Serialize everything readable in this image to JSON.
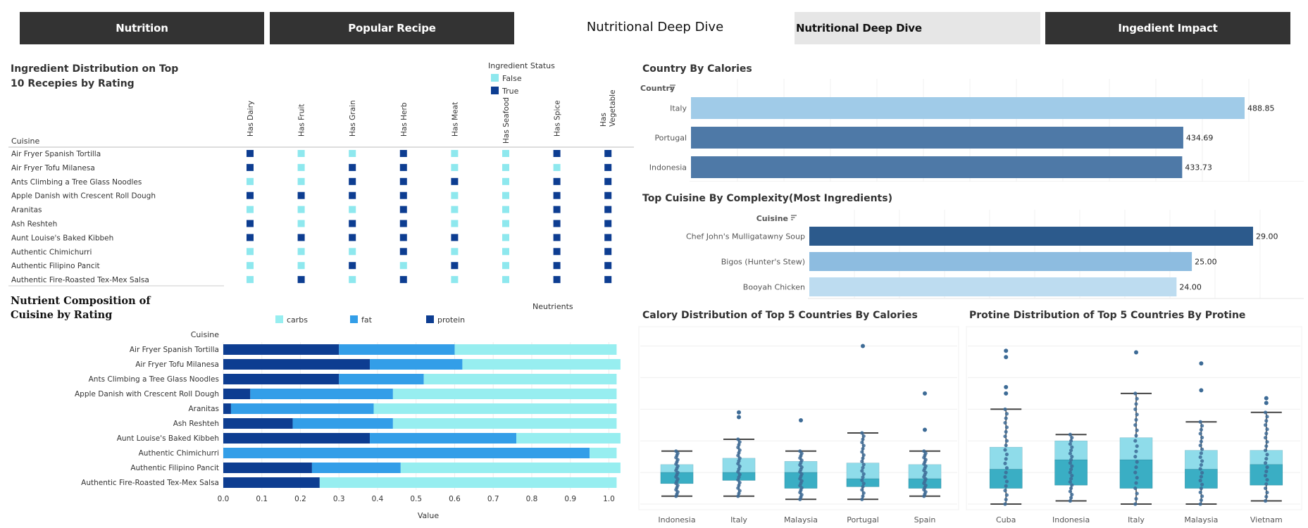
{
  "nav": {
    "tabs": [
      {
        "label": "Nutrition",
        "style": "dark"
      },
      {
        "label": "Popular Recipe",
        "style": "dark"
      },
      {
        "label": "Nutritional Deep Dive",
        "style": "title"
      },
      {
        "label": "Nutritional Deep Dive",
        "style": "light"
      },
      {
        "label": "Ingedient Impact",
        "style": "dark"
      }
    ]
  },
  "colors": {
    "true": "#0d3d91",
    "false": "#8ee8ee",
    "carbs": "#97eef0",
    "fat": "#339ee8",
    "protein": "#0d3d91",
    "bar_dark": "#4e79a7",
    "bar_light": "#a0cbe8",
    "bar_darkest": "#2c5a8c",
    "bar_mid": "#8dbce0",
    "bar_lightest": "#bddcf0",
    "box_upper": "#8fdcea",
    "box_lower": "#3aaec4",
    "dots": "#3d6b96"
  },
  "chart_data": [
    {
      "id": "ingredient-grid",
      "type": "table",
      "title": "Ingredient Distribution on Top 10 Recepies by Rating",
      "row_header": "Cuisine",
      "legend_title": "Ingredient Status",
      "legend": [
        "False",
        "True"
      ],
      "columns": [
        "Has Dairy",
        "Has Fruit",
        "Has Grain",
        "Has Herb",
        "Has Meat",
        "Has Seafood",
        "Has Spice",
        "Has Vegetable"
      ],
      "rows": [
        "Air Fryer Spanish Tortilla",
        "Air Fryer Tofu Milanesa",
        "Ants Climbing a Tree Glass Noodles",
        "Apple Danish with Crescent Roll Dough",
        "Aranitas",
        "Ash Reshteh",
        "Aunt Louise's Baked Kibbeh",
        "Authentic Chimichurri",
        "Authentic Filipino Pancit",
        "Authentic Fire-Roasted Tex-Mex Salsa"
      ],
      "values": [
        [
          true,
          false,
          false,
          true,
          false,
          false,
          true,
          true
        ],
        [
          true,
          false,
          true,
          true,
          false,
          false,
          false,
          true
        ],
        [
          false,
          false,
          true,
          true,
          true,
          false,
          true,
          true
        ],
        [
          true,
          true,
          true,
          true,
          false,
          false,
          true,
          true
        ],
        [
          false,
          false,
          false,
          true,
          false,
          false,
          true,
          true
        ],
        [
          true,
          false,
          true,
          true,
          false,
          false,
          true,
          true
        ],
        [
          true,
          true,
          true,
          true,
          true,
          false,
          true,
          true
        ],
        [
          false,
          false,
          false,
          true,
          false,
          false,
          true,
          true
        ],
        [
          false,
          false,
          true,
          false,
          true,
          false,
          true,
          true
        ],
        [
          false,
          true,
          false,
          true,
          false,
          false,
          true,
          true
        ]
      ]
    },
    {
      "id": "nutrient-composition",
      "type": "bar",
      "title": "Nutrient Composition of Cuisine by Rating",
      "legend_title": "Neutrients",
      "ylabel": "Cuisine",
      "xlabel": "Value",
      "xlim": [
        0,
        1
      ],
      "xticks": [
        "0.0",
        "0.1",
        "0.2",
        "0.3",
        "0.4",
        "0.5",
        "0.6",
        "0.7",
        "0.8",
        "0.9",
        "1.0"
      ],
      "categories": [
        "Air Fryer Spanish Tortilla",
        "Air Fryer Tofu Milanesa",
        "Ants Climbing a Tree Glass Noodles",
        "Apple Danish with Crescent Roll Dough",
        "Aranitas",
        "Ash Reshteh",
        "Aunt Louise's Baked Kibbeh",
        "Authentic Chimichurri",
        "Authentic Filipino Pancit",
        "Authentic Fire-Roasted Tex-Mex Salsa"
      ],
      "series": [
        {
          "name": "protein",
          "values": [
            0.3,
            0.38,
            0.3,
            0.07,
            0.02,
            0.18,
            0.38,
            0.0,
            0.23,
            0.25
          ]
        },
        {
          "name": "fat",
          "values": [
            0.3,
            0.24,
            0.22,
            0.37,
            0.37,
            0.26,
            0.38,
            0.95,
            0.23,
            0.0
          ]
        },
        {
          "name": "carbs",
          "values": [
            0.42,
            0.41,
            0.5,
            0.58,
            0.63,
            0.58,
            0.27,
            0.07,
            0.57,
            0.77
          ]
        }
      ]
    },
    {
      "id": "country-calories",
      "type": "bar",
      "title": "Country By Calories",
      "ylabel": "Country",
      "categories": [
        "Italy",
        "Portugal",
        "Indonesia"
      ],
      "values": [
        488.85,
        434.69,
        433.73
      ],
      "labels": [
        "488.85",
        "434.69",
        "433.73"
      ]
    },
    {
      "id": "cuisine-complexity",
      "type": "bar",
      "title": "Top Cuisine By Complexity(Most Ingredients)",
      "ylabel": "Cuisine",
      "categories": [
        "Chef John's Mulligatawny Soup",
        "Bigos (Hunter's Stew)",
        "Booyah Chicken"
      ],
      "values": [
        29.0,
        25.0,
        24.0
      ],
      "labels": [
        "29.00",
        "25.00",
        "24.00"
      ]
    },
    {
      "id": "calory-distribution",
      "type": "box",
      "title": "Calory Distribution of Top 5 Countries By Calories",
      "categories": [
        "Indonesia",
        "Italy",
        "Malaysia",
        "Portugal",
        "Spain"
      ],
      "ylim": [
        0,
        1000
      ],
      "boxes": [
        {
          "min": 50,
          "q1": 130,
          "median": 200,
          "q3": 250,
          "max": 335
        },
        {
          "min": 50,
          "q1": 150,
          "median": 200,
          "q3": 290,
          "max": 410
        },
        {
          "min": 30,
          "q1": 100,
          "median": 200,
          "q3": 270,
          "max": 335
        },
        {
          "min": 30,
          "q1": 110,
          "median": 160,
          "q3": 260,
          "max": 450
        },
        {
          "min": 50,
          "q1": 100,
          "median": 160,
          "q3": 250,
          "max": 335
        }
      ],
      "outliers": [
        [],
        [
          580,
          550
        ],
        [
          530
        ],
        [
          1000
        ],
        [
          700,
          470
        ]
      ]
    },
    {
      "id": "protine-distribution",
      "type": "box",
      "title": "Protine Distribution of Top 5 Countries By Protine",
      "categories": [
        "Cuba",
        "Indonesia",
        "Italy",
        "Malaysia",
        "Vietnam"
      ],
      "ylim": [
        0,
        100
      ],
      "boxes": [
        {
          "min": 0,
          "q1": 10,
          "median": 22,
          "q3": 36,
          "max": 60
        },
        {
          "min": 2,
          "q1": 12,
          "median": 28,
          "q3": 40,
          "max": 44
        },
        {
          "min": 0,
          "q1": 10,
          "median": 28,
          "q3": 42,
          "max": 70
        },
        {
          "min": 0,
          "q1": 10,
          "median": 22,
          "q3": 34,
          "max": 52
        },
        {
          "min": 2,
          "q1": 12,
          "median": 25,
          "q3": 34,
          "max": 58
        }
      ],
      "outliers": [
        [
          97,
          93,
          74,
          70
        ],
        [],
        [
          96
        ],
        [
          89,
          72
        ],
        [
          67,
          64
        ]
      ]
    }
  ]
}
